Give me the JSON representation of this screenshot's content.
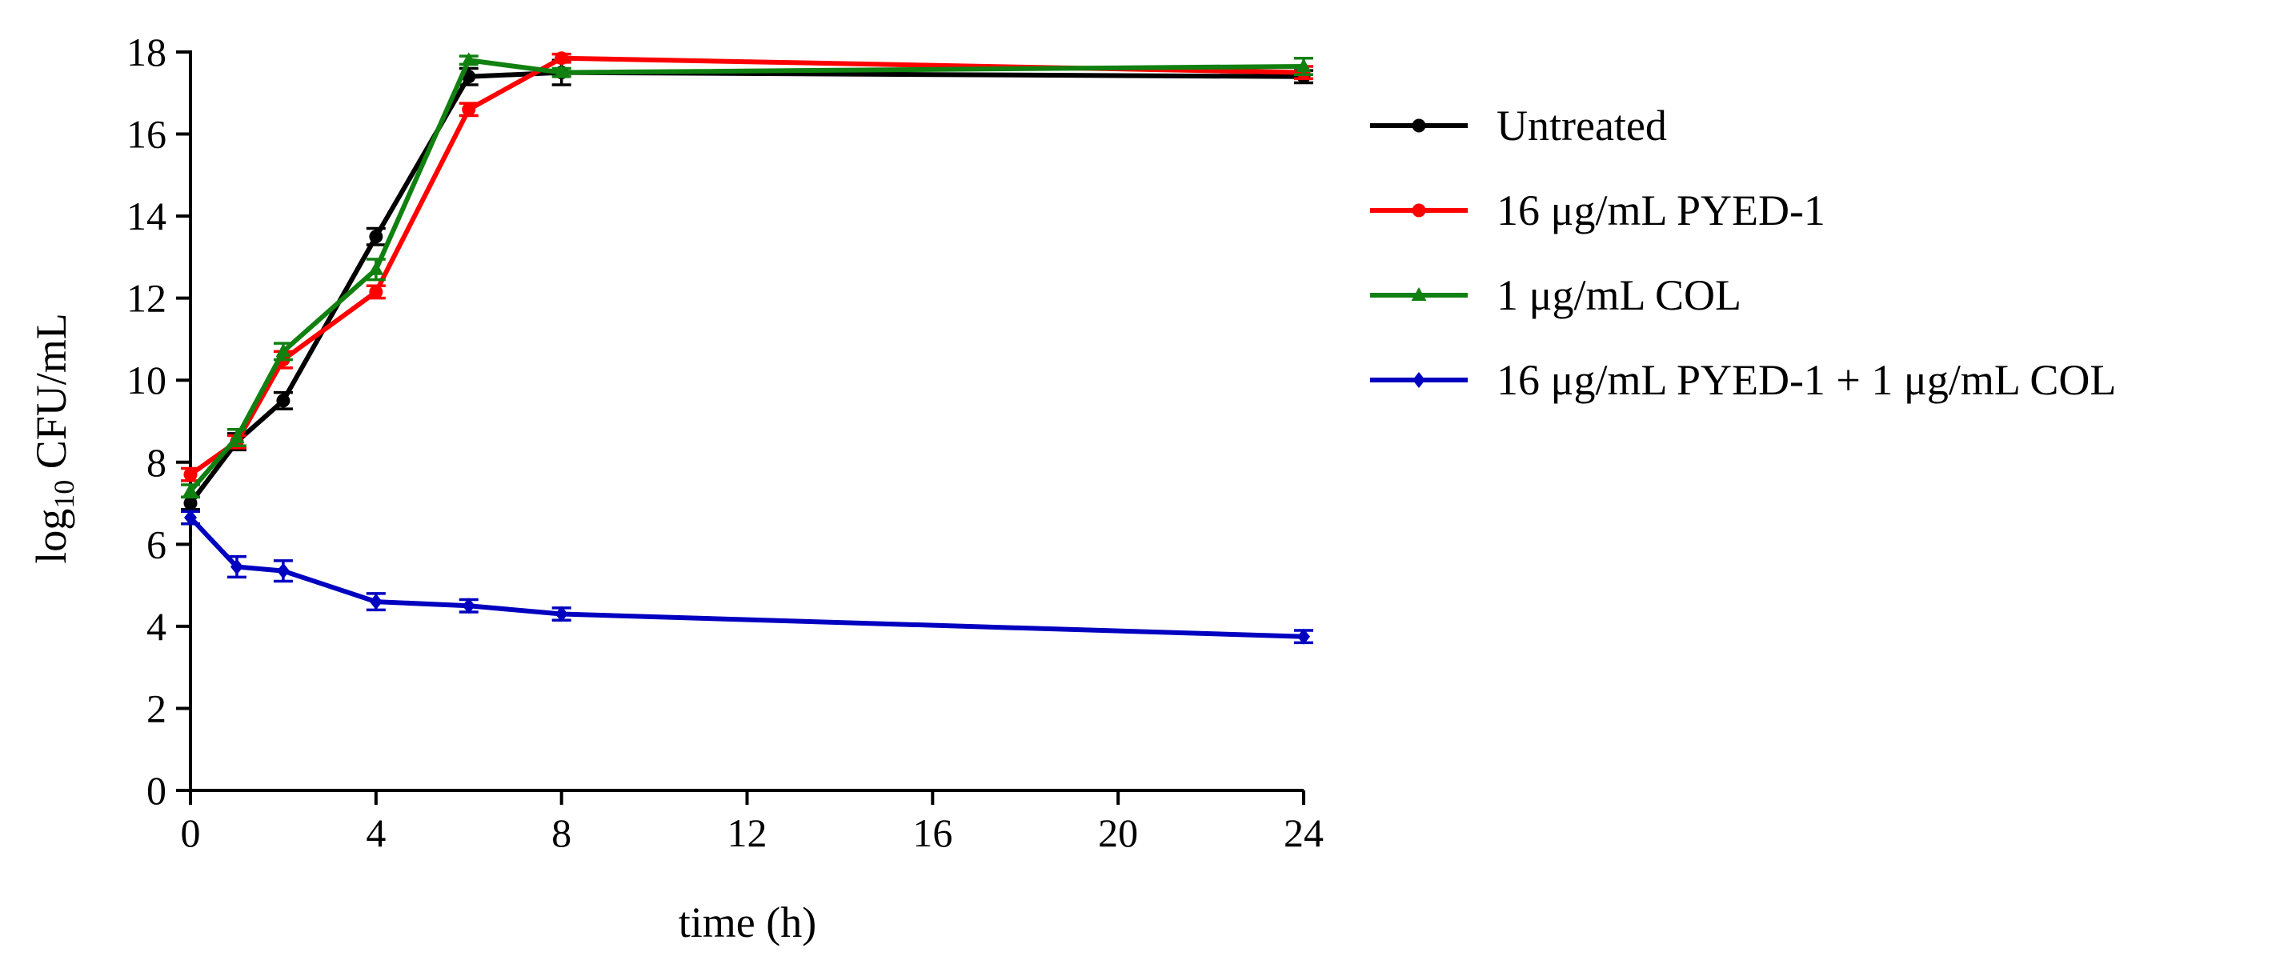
{
  "chart_data": {
    "type": "line",
    "title": "",
    "xlabel": "time (h)",
    "ylabel_main": "log",
    "ylabel_sub": "10",
    "ylabel_rest": " CFU/mL",
    "xlim": [
      0,
      24
    ],
    "ylim": [
      0,
      18
    ],
    "xticks": [
      0,
      4,
      8,
      12,
      16,
      20,
      24
    ],
    "yticks": [
      0,
      2,
      4,
      6,
      8,
      10,
      12,
      14,
      16,
      18
    ],
    "xtick_labels": [
      "0",
      "4",
      "8",
      "12",
      "16",
      "20",
      "24"
    ],
    "ytick_labels": [
      "0",
      "2",
      "4",
      "6",
      "8",
      "10",
      "12",
      "14",
      "16",
      "18"
    ],
    "grid": false,
    "legend_position": "right",
    "series": [
      {
        "name": "Untreated",
        "color": "#000000",
        "marker": "circle",
        "x": [
          0,
          1,
          2,
          4,
          6,
          8,
          24
        ],
        "y": [
          7.0,
          8.5,
          9.5,
          13.5,
          17.4,
          17.5,
          17.4
        ],
        "err": [
          0.15,
          0.2,
          0.2,
          0.2,
          0.2,
          0.3,
          0.15
        ]
      },
      {
        "name": "16 μg/mL PYED-1",
        "color": "#ff0000",
        "marker": "circle",
        "x": [
          0,
          1,
          2,
          4,
          6,
          8,
          24
        ],
        "y": [
          7.7,
          8.5,
          10.5,
          12.15,
          16.6,
          17.85,
          17.5
        ],
        "err": [
          0.15,
          0.15,
          0.2,
          0.15,
          0.15,
          0.1,
          0.15
        ]
      },
      {
        "name": "1 μg/mL COL",
        "color": "#108010",
        "marker": "triangle",
        "x": [
          0,
          1,
          2,
          4,
          6,
          8,
          24
        ],
        "y": [
          7.3,
          8.6,
          10.7,
          12.7,
          17.8,
          17.5,
          17.65
        ],
        "err": [
          0.15,
          0.2,
          0.2,
          0.25,
          0.1,
          0.1,
          0.2
        ]
      },
      {
        "name": "16 μg/mL PYED-1 + 1 μg/mL COL",
        "color": "#0000c0",
        "marker": "diamond",
        "x": [
          0,
          1,
          2,
          4,
          6,
          8,
          24
        ],
        "y": [
          6.65,
          5.45,
          5.35,
          4.6,
          4.5,
          4.3,
          3.75
        ],
        "err": [
          0.15,
          0.25,
          0.25,
          0.2,
          0.15,
          0.15,
          0.15
        ]
      }
    ]
  }
}
